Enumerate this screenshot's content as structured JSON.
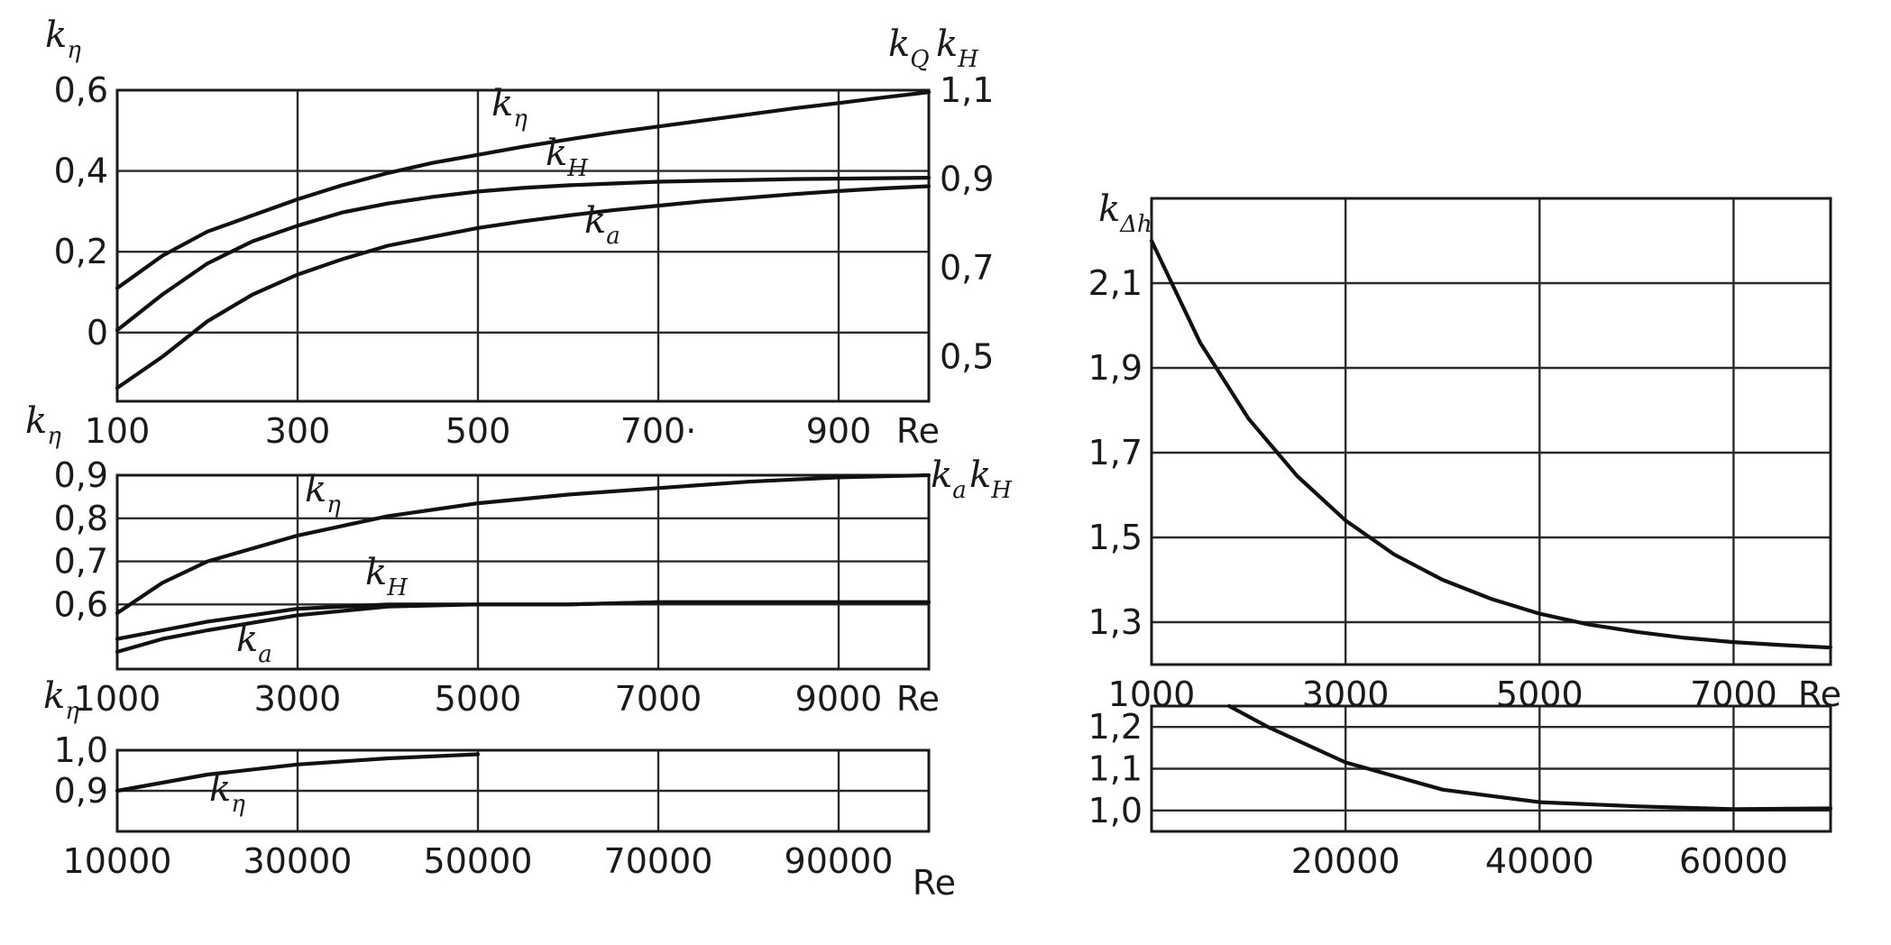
{
  "chart_data": [
    {
      "id": "p1",
      "type": "line",
      "x": [
        100,
        150,
        200,
        250,
        300,
        350,
        400,
        450,
        500,
        550,
        600,
        650,
        700,
        750,
        800,
        850,
        900,
        950,
        1000
      ],
      "xlim": [
        100,
        1000
      ],
      "ylim_left": [
        -0.17,
        0.6
      ],
      "ylim_right": [
        0.4,
        1.1
      ],
      "xticks": [
        "100",
        "300",
        "500",
        "700·",
        "900"
      ],
      "xtick_values": [
        100,
        300,
        500,
        700,
        900
      ],
      "xlabel": "Re",
      "yticks_left": [
        "0,6",
        "0,4",
        "0,2",
        "0"
      ],
      "ytick_left_values": [
        0.6,
        0.4,
        0.2,
        0.0
      ],
      "yticks_right": [
        "1,1",
        "0,9",
        "0,7",
        "0,5"
      ],
      "ytick_right_values": [
        1.1,
        0.9,
        0.7,
        0.5
      ],
      "ylabel_left": {
        "base": "k",
        "sub": "η"
      },
      "ylabel_right": [
        {
          "base": "k",
          "sub": "Q"
        },
        {
          "base": "k",
          "sub": "H"
        }
      ],
      "series": [
        {
          "name": "kη",
          "label": {
            "base": "k",
            "sub": "η"
          },
          "axis": "left",
          "values": [
            0.11,
            0.19,
            0.25,
            0.29,
            0.33,
            0.365,
            0.395,
            0.42,
            0.44,
            0.46,
            0.478,
            0.495,
            0.51,
            0.525,
            0.54,
            0.555,
            0.568,
            0.582,
            0.595
          ]
        },
        {
          "name": "kH",
          "label": {
            "base": "k",
            "sub": "H"
          },
          "axis": "right",
          "values": [
            0.56,
            0.64,
            0.71,
            0.76,
            0.795,
            0.825,
            0.845,
            0.86,
            0.872,
            0.88,
            0.886,
            0.89,
            0.894,
            0.896,
            0.898,
            0.9,
            0.901,
            0.902,
            0.903
          ]
        },
        {
          "name": "ka",
          "label": {
            "base": "k",
            "sub": "a"
          },
          "axis": "right",
          "values": [
            0.43,
            0.5,
            0.58,
            0.64,
            0.685,
            0.72,
            0.75,
            0.77,
            0.79,
            0.805,
            0.818,
            0.83,
            0.84,
            0.85,
            0.858,
            0.866,
            0.873,
            0.879,
            0.884
          ]
        }
      ]
    },
    {
      "id": "p2",
      "type": "line",
      "x": [
        1000,
        1500,
        2000,
        3000,
        4000,
        5000,
        6000,
        7000,
        8000,
        9000,
        10000
      ],
      "xlim": [
        1000,
        10000
      ],
      "ylim": [
        0.45,
        0.9
      ],
      "xticks": [
        "1000",
        "3000",
        "5000",
        "7000",
        "9000"
      ],
      "xtick_values": [
        1000,
        3000,
        5000,
        7000,
        9000
      ],
      "xlabel": "Re",
      "yticks": [
        "0,9",
        "0,8",
        "0,7",
        "0,6"
      ],
      "ytick_values": [
        0.9,
        0.8,
        0.7,
        0.6
      ],
      "ylabel_left": {
        "base": "k",
        "sub": "η"
      },
      "ylabel_right": [
        {
          "base": "k",
          "sub": "a"
        },
        {
          "base": "k",
          "sub": "H"
        }
      ],
      "series": [
        {
          "name": "kη",
          "label": {
            "base": "k",
            "sub": "η"
          },
          "values": [
            0.58,
            0.65,
            0.7,
            0.76,
            0.805,
            0.835,
            0.855,
            0.87,
            0.885,
            0.895,
            0.9
          ]
        },
        {
          "name": "kH",
          "label": {
            "base": "k",
            "sub": "H"
          },
          "values": [
            0.52,
            0.54,
            0.56,
            0.59,
            0.6,
            0.6,
            0.6,
            0.605,
            0.605,
            0.605,
            0.605
          ]
        },
        {
          "name": "ka",
          "label": {
            "base": "k",
            "sub": "a"
          },
          "values": [
            0.49,
            0.52,
            0.54,
            0.575,
            0.595,
            0.6,
            0.6,
            0.605,
            0.605,
            0.605,
            0.605
          ]
        }
      ]
    },
    {
      "id": "p3",
      "type": "line",
      "x": [
        10000,
        20000,
        30000,
        40000,
        50000
      ],
      "xlim": [
        10000,
        100000
      ],
      "ylim": [
        0.8,
        1.0
      ],
      "xticks": [
        "10000",
        "30000",
        "50000",
        "70000",
        "90000"
      ],
      "xtick_values": [
        10000,
        30000,
        50000,
        70000,
        90000
      ],
      "xlabel": "Re",
      "yticks": [
        "1,0",
        "0,9"
      ],
      "ytick_values": [
        1.0,
        0.9
      ],
      "ylabel_left": {
        "base": "k",
        "sub": "η"
      },
      "series": [
        {
          "name": "kη",
          "label": {
            "base": "k",
            "sub": "η"
          },
          "values": [
            0.9,
            0.94,
            0.965,
            0.98,
            0.99
          ]
        }
      ]
    },
    {
      "id": "p4",
      "type": "line",
      "x": [
        1000,
        1500,
        2000,
        2500,
        3000,
        3500,
        4000,
        4500,
        5000,
        5500,
        6000,
        6500,
        7000,
        7500,
        8000
      ],
      "xlim": [
        1000,
        8000
      ],
      "ylim": [
        1.2,
        2.3
      ],
      "xticks": [
        "1000",
        "3000",
        "5000",
        "7000"
      ],
      "xtick_values": [
        1000,
        3000,
        5000,
        7000
      ],
      "xlabel": "Re",
      "yticks": [
        "2,1",
        "1,9",
        "1,7",
        "1,5",
        "1,3"
      ],
      "ytick_values": [
        2.1,
        1.9,
        1.7,
        1.5,
        1.3
      ],
      "ylabel_left": {
        "base": "k",
        "sub": "Δh"
      },
      "series": [
        {
          "name": "kΔh",
          "values": [
            2.2,
            1.96,
            1.78,
            1.645,
            1.54,
            1.46,
            1.4,
            1.355,
            1.32,
            1.295,
            1.277,
            1.263,
            1.253,
            1.246,
            1.24
          ]
        }
      ]
    },
    {
      "id": "p5",
      "type": "line",
      "x": [
        8000,
        12000,
        20000,
        30000,
        40000,
        50000,
        60000,
        70000
      ],
      "xlim": [
        0,
        70000
      ],
      "ylim": [
        0.95,
        1.25
      ],
      "xticks": [
        "20000",
        "40000",
        "60000"
      ],
      "xtick_values": [
        20000,
        40000,
        60000
      ],
      "yticks": [
        "1,2",
        "1,1",
        "1,0"
      ],
      "ytick_values": [
        1.2,
        1.1,
        1.0
      ],
      "series": [
        {
          "name": "kΔh",
          "values": [
            1.25,
            1.2,
            1.115,
            1.05,
            1.02,
            1.01,
            1.003,
            1.005
          ]
        }
      ]
    }
  ]
}
